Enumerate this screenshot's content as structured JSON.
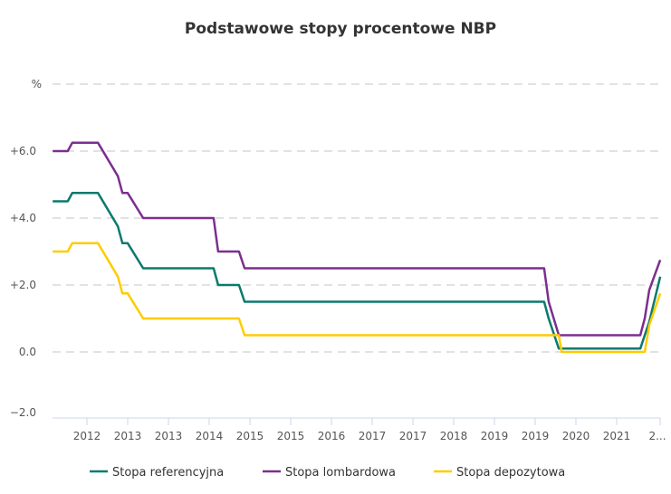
{
  "chart_data": {
    "type": "line",
    "title": "Podstawowe stopy procentowe NBP",
    "ylabel": "%",
    "ylim": [
      -2.0,
      8.0
    ],
    "y_ticks": [
      "%",
      "+6.0",
      "+4.0",
      "+2.0",
      "0.0",
      "−2.0"
    ],
    "x_tick_labels": [
      "2012",
      "2013",
      "2013",
      "2014",
      "2015",
      "2015",
      "2016",
      "2017",
      "2017",
      "2018",
      "2019",
      "2019",
      "2020",
      "2021",
      "2..."
    ],
    "grid": true,
    "legend": "bottom",
    "series": [
      {
        "name": "Stopa referencyjna",
        "color": "#0b7a6e",
        "points": [
          [
            -0.84,
            4.5
          ],
          [
            -0.47,
            4.5
          ],
          [
            -0.36,
            4.75
          ],
          [
            0.27,
            4.75
          ],
          [
            0.76,
            3.75
          ],
          [
            0.87,
            3.25
          ],
          [
            1.0,
            3.25
          ],
          [
            1.38,
            2.5
          ],
          [
            3.11,
            2.5
          ],
          [
            3.22,
            2.0
          ],
          [
            3.73,
            2.0
          ],
          [
            3.87,
            1.5
          ],
          [
            11.22,
            1.5
          ],
          [
            11.33,
            1.0
          ],
          [
            11.58,
            0.1
          ],
          [
            13.58,
            0.1
          ],
          [
            13.69,
            0.5
          ],
          [
            13.8,
            0.9
          ],
          [
            14.07,
            2.25
          ]
        ]
      },
      {
        "name": "Stopa lombardowa",
        "color": "#7b2f8e",
        "points": [
          [
            -0.84,
            6.0
          ],
          [
            -0.47,
            6.0
          ],
          [
            -0.36,
            6.25
          ],
          [
            0.27,
            6.25
          ],
          [
            0.76,
            5.25
          ],
          [
            0.87,
            4.75
          ],
          [
            1.0,
            4.75
          ],
          [
            1.38,
            4.0
          ],
          [
            3.11,
            4.0
          ],
          [
            3.22,
            3.0
          ],
          [
            3.73,
            3.0
          ],
          [
            3.87,
            2.5
          ],
          [
            11.22,
            2.5
          ],
          [
            11.33,
            1.5
          ],
          [
            11.58,
            0.5
          ],
          [
            13.58,
            0.5
          ],
          [
            13.69,
            1.0
          ],
          [
            13.8,
            1.85
          ],
          [
            14.07,
            2.75
          ]
        ]
      },
      {
        "name": "Stopa depozytowa",
        "color": "#ffcc00",
        "points": [
          [
            -0.84,
            3.0
          ],
          [
            -0.47,
            3.0
          ],
          [
            -0.36,
            3.25
          ],
          [
            0.27,
            3.25
          ],
          [
            0.76,
            2.25
          ],
          [
            0.87,
            1.75
          ],
          [
            1.0,
            1.75
          ],
          [
            1.38,
            1.0
          ],
          [
            3.11,
            1.0
          ],
          [
            3.22,
            1.0
          ],
          [
            3.73,
            1.0
          ],
          [
            3.87,
            0.5
          ],
          [
            11.22,
            0.5
          ],
          [
            11.58,
            0.5
          ],
          [
            11.65,
            0.0
          ],
          [
            13.69,
            0.0
          ],
          [
            13.8,
            0.8
          ],
          [
            14.07,
            1.75
          ]
        ]
      }
    ]
  }
}
